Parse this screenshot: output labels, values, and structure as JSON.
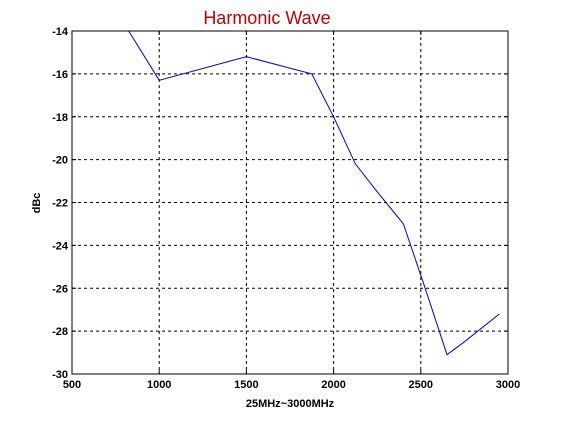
{
  "chart_data": {
    "type": "line",
    "title": "Harmonic Wave",
    "xlabel": "25MHz~3000MHz",
    "ylabel": "dBc",
    "xlim": [
      500,
      3000
    ],
    "ylim": [
      -30,
      -14
    ],
    "x_ticks": [
      500,
      1000,
      1500,
      2000,
      2500,
      3000
    ],
    "y_ticks": [
      -30,
      -28,
      -26,
      -24,
      -22,
      -20,
      -18,
      -16,
      -14
    ],
    "x_tick_labels": [
      "500",
      "1000",
      "1500",
      "2000",
      "2500",
      "3000"
    ],
    "y_tick_labels": [
      "-30",
      "-28",
      "-26",
      "-24",
      "-22",
      "-20",
      "-18",
      "-16",
      "-14"
    ],
    "grid": true,
    "series": [
      {
        "x": [
          750,
          825,
          1000,
          1500,
          1875,
          2000,
          2125,
          2250,
          2400,
          2525,
          2650,
          2750,
          2950
        ],
        "y": [
          -13,
          -14,
          -16.3,
          -15.2,
          -16.0,
          -18.0,
          -20.2,
          -21.5,
          -23.0,
          -26.0,
          -29.1,
          -28.5,
          -27.2
        ]
      }
    ],
    "colors": {
      "title": "#c00000",
      "line": "#0000cc",
      "axes": "#000000",
      "grid": "#000000"
    }
  }
}
